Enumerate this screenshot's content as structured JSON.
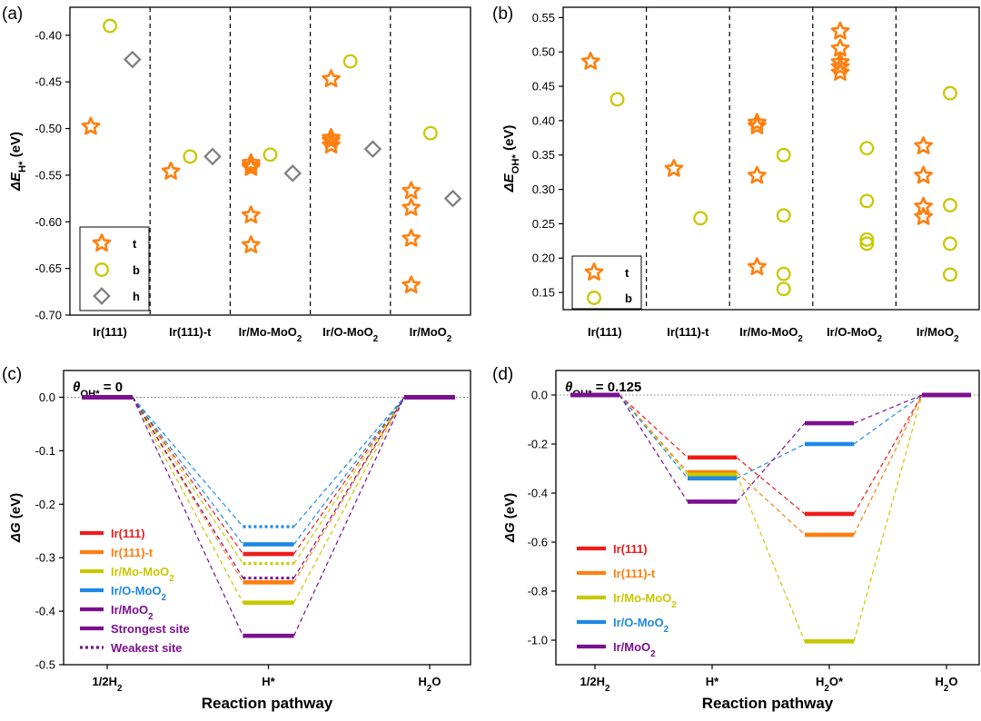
{
  "chart_data": [
    {
      "id": "a",
      "type": "scatter",
      "panel_label": "(a)",
      "ylabel": "ΔE_H* (eV)",
      "ylabel_main": "ΔE",
      "ylabel_sub": "H*",
      "ylabel_unit": "(eV)",
      "ylim": [
        -0.7,
        -0.37
      ],
      "yticks": [
        -0.4,
        -0.45,
        -0.5,
        -0.55,
        -0.6,
        -0.65,
        -0.7
      ],
      "ytick_labels": [
        "-0.40",
        "-0.45",
        "-0.50",
        "-0.55",
        "-0.60",
        "-0.65",
        "-0.70"
      ],
      "categories": [
        {
          "main": "Ir(111)",
          "sub": ""
        },
        {
          "main": "Ir(111)-t",
          "sub": ""
        },
        {
          "main": "Ir/Mo-MoO",
          "sub": "2"
        },
        {
          "main": "Ir/O-MoO",
          "sub": "2"
        },
        {
          "main": "Ir/MoO",
          "sub": "2"
        }
      ],
      "legend": [
        {
          "label": "t",
          "marker": "star",
          "color": "#FF7F0E"
        },
        {
          "label": "b",
          "marker": "circle",
          "color": "#C8C800"
        },
        {
          "label": "h",
          "marker": "diamond",
          "color": "#808080"
        }
      ],
      "series": [
        {
          "name": "t",
          "points": [
            [
              0,
              -0.498
            ],
            [
              1,
              -0.546
            ],
            [
              2,
              -0.537
            ],
            [
              2,
              -0.54
            ],
            [
              2,
              -0.542
            ],
            [
              2,
              -0.593
            ],
            [
              2,
              -0.625
            ],
            [
              3,
              -0.447
            ],
            [
              3,
              -0.51
            ],
            [
              3,
              -0.513
            ],
            [
              3,
              -0.518
            ],
            [
              4,
              -0.567
            ],
            [
              4,
              -0.585
            ],
            [
              4,
              -0.618
            ],
            [
              4,
              -0.668
            ]
          ]
        },
        {
          "name": "b",
          "points": [
            [
              0,
              -0.39
            ],
            [
              1,
              -0.53
            ],
            [
              2,
              -0.528
            ],
            [
              3,
              -0.428
            ],
            [
              4,
              -0.505
            ]
          ]
        },
        {
          "name": "h",
          "points": [
            [
              0,
              -0.426
            ],
            [
              1,
              -0.53
            ],
            [
              2,
              -0.548
            ],
            [
              3,
              -0.522
            ],
            [
              4,
              -0.575
            ]
          ]
        }
      ]
    },
    {
      "id": "b",
      "type": "scatter",
      "panel_label": "(b)",
      "ylabel": "ΔE_OH* (eV)",
      "ylabel_main": "ΔE",
      "ylabel_sub": "OH*",
      "ylabel_unit": "(eV)",
      "ylim": [
        0.125,
        0.565
      ],
      "yticks": [
        0.55,
        0.5,
        0.45,
        0.4,
        0.35,
        0.3,
        0.25,
        0.2,
        0.15
      ],
      "ytick_labels": [
        "0.55",
        "0.50",
        "0.45",
        "0.40",
        "0.35",
        "0.30",
        "0.25",
        "0.20",
        "0.15"
      ],
      "categories": [
        {
          "main": "Ir(111)",
          "sub": ""
        },
        {
          "main": "Ir(111)-t",
          "sub": ""
        },
        {
          "main": "Ir/Mo-MoO",
          "sub": "2"
        },
        {
          "main": "Ir/O-MoO",
          "sub": "2"
        },
        {
          "main": "Ir/MoO",
          "sub": "2"
        }
      ],
      "legend": [
        {
          "label": "t",
          "marker": "star",
          "color": "#FF7F0E"
        },
        {
          "label": "b",
          "marker": "circle",
          "color": "#C8C800"
        }
      ],
      "series": [
        {
          "name": "t",
          "points": [
            [
              0,
              0.486
            ],
            [
              1,
              0.33
            ],
            [
              2,
              0.397
            ],
            [
              2,
              0.392
            ],
            [
              2,
              0.32
            ],
            [
              2,
              0.187
            ],
            [
              3,
              0.53
            ],
            [
              3,
              0.505
            ],
            [
              3,
              0.485
            ],
            [
              3,
              0.478
            ],
            [
              3,
              0.47
            ],
            [
              4,
              0.363
            ],
            [
              4,
              0.32
            ],
            [
              4,
              0.275
            ],
            [
              4,
              0.26
            ]
          ]
        },
        {
          "name": "b",
          "points": [
            [
              0,
              0.431
            ],
            [
              1,
              0.258
            ],
            [
              2,
              0.35
            ],
            [
              2,
              0.262
            ],
            [
              2,
              0.177
            ],
            [
              2,
              0.155
            ],
            [
              3,
              0.36
            ],
            [
              3,
              0.283
            ],
            [
              3,
              0.227
            ],
            [
              3,
              0.221
            ],
            [
              4,
              0.44
            ],
            [
              4,
              0.277
            ],
            [
              4,
              0.221
            ],
            [
              4,
              0.176
            ]
          ]
        }
      ]
    },
    {
      "id": "c",
      "type": "line",
      "panel_label": "(c)",
      "annotation_theta": "θ",
      "annotation_sub": "OH*",
      "annotation_value": " = 0",
      "xlabel": "Reaction pathway",
      "ylabel": "ΔG (eV)",
      "ylabel_main": "ΔG",
      "ylabel_unit": "(eV)",
      "ylim": [
        -0.5,
        0.05
      ],
      "yticks": [
        0.0,
        -0.1,
        -0.2,
        -0.3,
        -0.4,
        -0.5
      ],
      "ytick_labels": [
        "0.0",
        "-0.1",
        "-0.2",
        "-0.3",
        "-0.4",
        "-0.5"
      ],
      "categories": [
        {
          "main": "1/2H",
          "sub": "2",
          "after": ""
        },
        {
          "main": "H*",
          "sub": "",
          "after": ""
        },
        {
          "main": "H",
          "sub": "2",
          "after": "O"
        }
      ],
      "series": [
        {
          "name": "Ir(111)",
          "color": "#EE1C1C",
          "values": [
            0.0,
            -0.293,
            0.0
          ]
        },
        {
          "name": "Ir(111)-t",
          "color": "#FF7F0E",
          "values": [
            0.0,
            -0.346,
            0.0
          ]
        },
        {
          "name": "Ir/Mo-MoO2",
          "color": "#C8C800",
          "values": [
            0.0,
            -0.384,
            0.0
          ]
        },
        {
          "name": "Ir/Mo-MoO2 weakest",
          "color": "#C8C800",
          "dotted": true,
          "values": [
            0.0,
            -0.311,
            0.0
          ]
        },
        {
          "name": "Ir/O-MoO2",
          "color": "#1E88E5",
          "values": [
            0.0,
            -0.275,
            0.0
          ]
        },
        {
          "name": "Ir/O-MoO2 weakest",
          "color": "#1E88E5",
          "dotted": true,
          "values": [
            0.0,
            -0.242,
            0.0
          ]
        },
        {
          "name": "Ir/MoO2",
          "color": "#7B0F8F",
          "values": [
            0.0,
            -0.446,
            0.0
          ]
        },
        {
          "name": "Ir/MoO2 weakest",
          "color": "#7B0F8F",
          "dotted": true,
          "values": [
            0.0,
            -0.338,
            0.0
          ]
        }
      ],
      "legend": [
        {
          "label": "Ir(111)",
          "sub": "",
          "color": "#EE1C1C",
          "style": "solid"
        },
        {
          "label": "Ir(111)-t",
          "sub": "",
          "color": "#FF7F0E",
          "style": "solid"
        },
        {
          "label": "Ir/Mo-MoO",
          "sub": "2",
          "color": "#C8C800",
          "style": "solid"
        },
        {
          "label": "Ir/O-MoO",
          "sub": "2",
          "color": "#1E88E5",
          "style": "solid"
        },
        {
          "label": "Ir/MoO",
          "sub": "2",
          "color": "#7B0F8F",
          "style": "solid"
        },
        {
          "label": "Strongest site",
          "sub": "",
          "color": "#7B0F8F",
          "style": "solid"
        },
        {
          "label": "Weakest site",
          "sub": "",
          "color": "#7B0F8F",
          "style": "dotted"
        }
      ]
    },
    {
      "id": "d",
      "type": "line",
      "panel_label": "(d)",
      "annotation_theta": "θ",
      "annotation_sub": "OH*",
      "annotation_value": " = 0.125",
      "xlabel": "Reaction pathway",
      "ylabel": "ΔG (eV)",
      "ylabel_main": "ΔG",
      "ylabel_unit": "(eV)",
      "ylim": [
        -1.1,
        0.1
      ],
      "yticks": [
        0.0,
        -0.2,
        -0.4,
        -0.6,
        -0.8,
        -1.0
      ],
      "ytick_labels": [
        "0.0",
        "-0.2",
        "-0.4",
        "-0.6",
        "-0.8",
        "-1.0"
      ],
      "categories": [
        {
          "main": "1/2H",
          "sub": "2",
          "after": ""
        },
        {
          "main": "H*",
          "sub": "",
          "after": ""
        },
        {
          "main": "H",
          "sub": "2",
          "after": "O*"
        },
        {
          "main": "H",
          "sub": "2",
          "after": "O"
        }
      ],
      "series": [
        {
          "name": "Ir(111)",
          "color": "#EE1C1C",
          "values": [
            0.0,
            -0.255,
            -0.485,
            0.0
          ]
        },
        {
          "name": "Ir(111)-t",
          "color": "#FF7F0E",
          "values": [
            0.0,
            -0.315,
            -0.57,
            0.0
          ]
        },
        {
          "name": "Ir/Mo-MoO2",
          "color": "#C8C800",
          "values": [
            0.0,
            -0.325,
            -1.005,
            0.0
          ]
        },
        {
          "name": "Ir/O-MoO2",
          "color": "#1E88E5",
          "values": [
            0.0,
            -0.34,
            -0.2,
            0.0
          ]
        },
        {
          "name": "Ir/MoO2",
          "color": "#7B0F8F",
          "values": [
            0.0,
            -0.435,
            -0.115,
            0.0
          ]
        }
      ],
      "legend": [
        {
          "label": "Ir(111)",
          "sub": "",
          "color": "#EE1C1C",
          "style": "solid"
        },
        {
          "label": "Ir(111)-t",
          "sub": "",
          "color": "#FF7F0E",
          "style": "solid"
        },
        {
          "label": "Ir/Mo-MoO",
          "sub": "2",
          "color": "#C8C800",
          "style": "solid"
        },
        {
          "label": "Ir/O-MoO",
          "sub": "2",
          "color": "#1E88E5",
          "style": "solid"
        },
        {
          "label": "Ir/MoO",
          "sub": "2",
          "color": "#7B0F8F",
          "style": "solid"
        }
      ]
    }
  ]
}
